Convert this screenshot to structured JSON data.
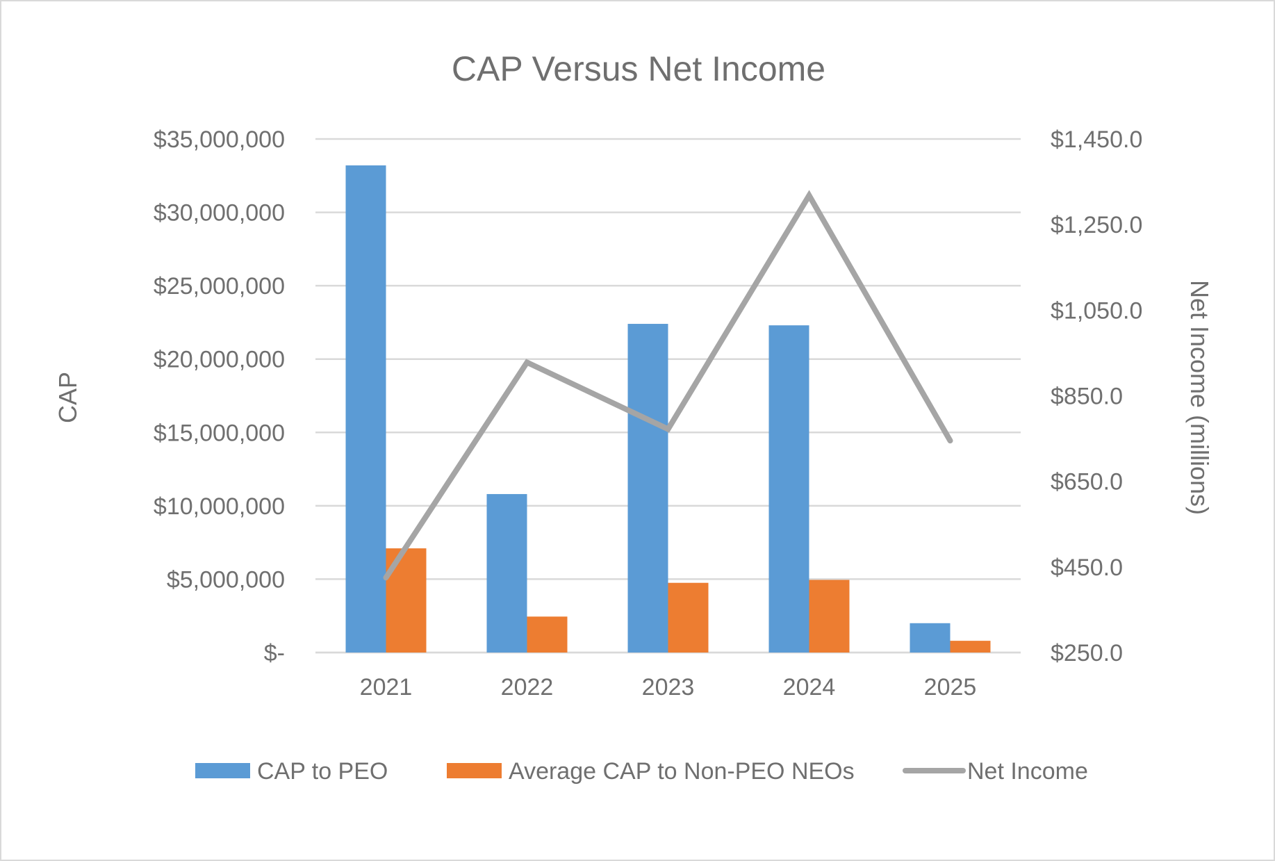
{
  "chart_data": {
    "type": "bar",
    "title": "CAP Versus Net Income",
    "categories": [
      "2021",
      "2022",
      "2023",
      "2024",
      "2025"
    ],
    "series": [
      {
        "name": "CAP to PEO",
        "type": "bar",
        "axis": "left",
        "color": "#5b9bd5",
        "values": [
          33200000,
          10800000,
          22400000,
          22300000,
          2000000
        ]
      },
      {
        "name": "Average CAP to Non-PEO NEOs",
        "type": "bar",
        "axis": "left",
        "color": "#ed7d31",
        "values": [
          7100000,
          2450000,
          4750000,
          4950000,
          800000
        ]
      },
      {
        "name": "Net Income",
        "type": "line",
        "axis": "right",
        "color": "#a5a5a5",
        "values": [
          425,
          928,
          772,
          1318,
          745
        ]
      }
    ],
    "ylabel": "CAP",
    "ylabel_right": "Net Income (millions)",
    "ylim": [
      0,
      35000000
    ],
    "ylim_right": [
      250,
      1450
    ],
    "yticks": [
      0,
      5000000,
      10000000,
      15000000,
      20000000,
      25000000,
      30000000,
      35000000
    ],
    "ytick_labels": [
      "$-",
      "$5,000,000",
      "$10,000,000",
      "$15,000,000",
      "$20,000,000",
      "$25,000,000",
      "$30,000,000",
      "$35,000,000"
    ],
    "yticks_right": [
      250,
      450,
      650,
      850,
      1050,
      1250,
      1450
    ],
    "ytick_labels_right": [
      "$250.0",
      "$450.0",
      "$650.0",
      "$850.0",
      "$1,050.0",
      "$1,250.0",
      "$1,450.0"
    ],
    "grid": true,
    "legend_position": "bottom"
  }
}
